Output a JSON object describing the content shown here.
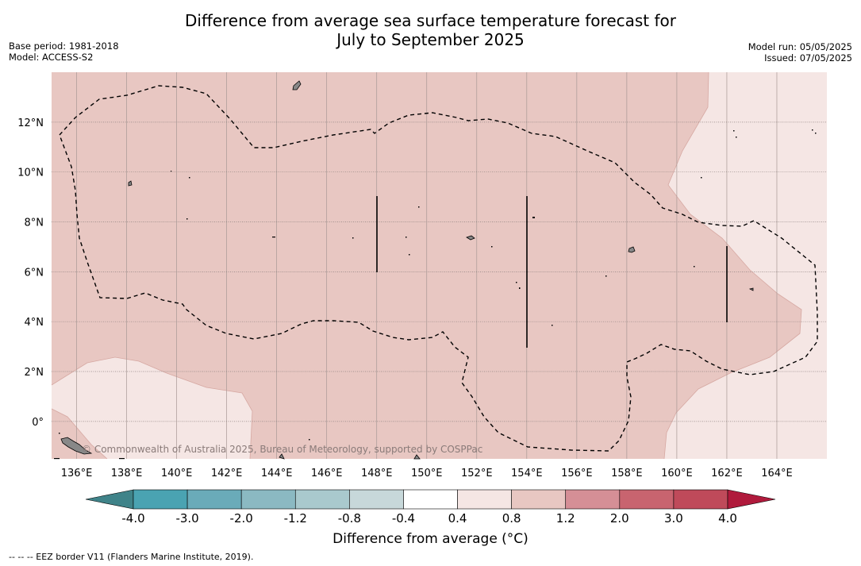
{
  "title_line1": "Difference from average sea surface temperature forecast for",
  "title_line2": "July to September 2025",
  "base_period": "Base period: 1981-2018",
  "model": "Model: ACCESS-S2",
  "model_run": "Model run: 05/05/2025",
  "issued": "Issued: 07/05/2025",
  "watermark": "© Commonwealth of Australia 2025, Bureau of Meteorology, supported by COSPPac",
  "footer": "--  --  -- EEZ border V11 (Flanders Marine Institute, 2019).",
  "colorbar": {
    "label": "Difference from average (°C)",
    "ticks": [
      "-4.0",
      "-3.0",
      "-2.0",
      "-1.2",
      "-0.8",
      "-0.4",
      "0.4",
      "0.8",
      "1.2",
      "2.0",
      "3.0",
      "4.0"
    ],
    "colors": [
      "#4aa3b2",
      "#6aabb9",
      "#8bb9c2",
      "#a9c9cd",
      "#c7d8da",
      "#ffffff",
      "#f5e6e4",
      "#e8c7c2",
      "#d58f96",
      "#c8646f",
      "#bf4a5a"
    ],
    "extend_low_color": "#3f8389",
    "extend_high_color": "#b01a3c"
  },
  "map": {
    "lon_labels": [
      "136°E",
      "138°E",
      "140°E",
      "142°E",
      "144°E",
      "146°E",
      "148°E",
      "150°E",
      "152°E",
      "154°E",
      "156°E",
      "158°E",
      "160°E",
      "162°E",
      "164°E"
    ],
    "lon_values": [
      136,
      138,
      140,
      142,
      144,
      146,
      148,
      150,
      152,
      154,
      156,
      158,
      160,
      162,
      164
    ],
    "lat_labels": [
      "12°N",
      "10°N",
      "8°N",
      "6°N",
      "4°N",
      "2°N",
      "0°"
    ],
    "lat_values": [
      12,
      10,
      8,
      6,
      4,
      2,
      0
    ],
    "lon_range": [
      135,
      166
    ],
    "lat_range": [
      -1.5,
      14
    ],
    "dominant_anomaly": "0.8 to 1.2",
    "secondary_anomaly": "0.4 to 0.8",
    "anomaly_colors": {
      "0.8 to 1.2": "#e8c7c2",
      "0.4 to 0.8": "#f5e6e4"
    }
  }
}
